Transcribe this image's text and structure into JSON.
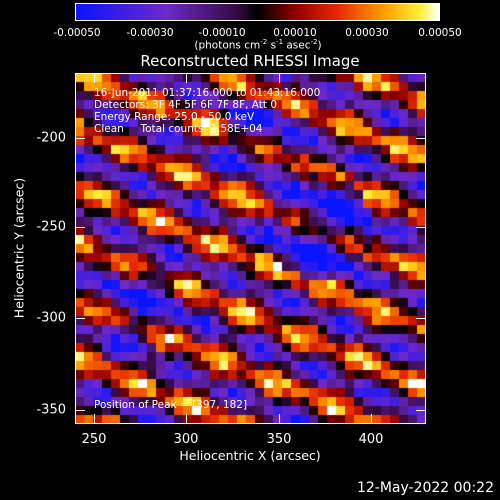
{
  "colorbar": {
    "ticks": [
      "-0.00050",
      "-0.00030",
      "-0.00010",
      "0.00010",
      "0.00030",
      "0.00050"
    ],
    "unit_prefix": "(photons cm",
    "unit_exp1": "-2",
    "unit_mid1": " s",
    "unit_exp2": "-1",
    "unit_mid2": " asec",
    "unit_exp3": "-2",
    "unit_suffix": ")",
    "range": [
      -0.0005,
      0.0005
    ]
  },
  "title": "Reconstructed RHESSI Image",
  "info": {
    "line1": "16-Jun-2011 01:37:16.000 to 01:43:16.000",
    "line2": "Detectors: 3F 4F 5F 6F 7F 8F, Att 0",
    "line3": "Energy Range: 25.0 - 50.0 keV",
    "line4": "Clean     Total counts: 1.58E+04",
    "peak": "Position of Peak = [397, 182]"
  },
  "axes": {
    "xlabel": "Heliocentric X (arcsec)",
    "ylabel": "Heliocentric Y (arcsec)",
    "xticks": [
      "250",
      "300",
      "350",
      "400"
    ],
    "yticks": [
      "-200",
      "-250",
      "-300",
      "-350"
    ],
    "xrange": [
      240,
      428
    ],
    "yrange": [
      -358,
      -170
    ]
  },
  "footer": "12-May-2022 00:22"
}
